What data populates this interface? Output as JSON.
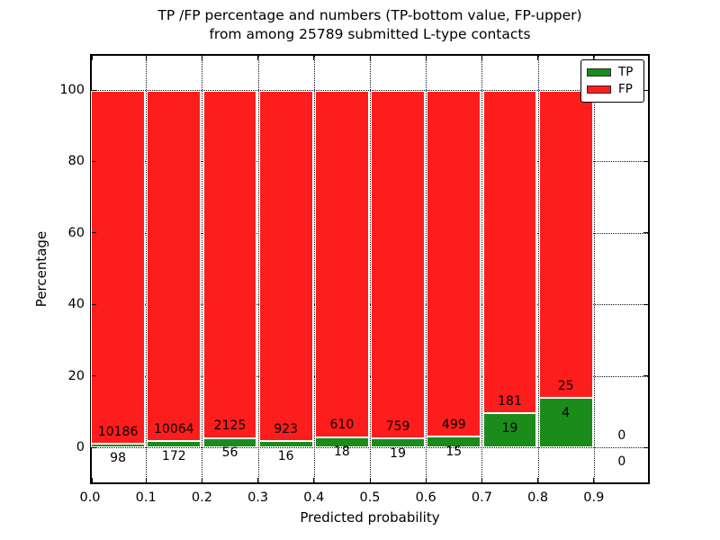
{
  "chart_data": {
    "type": "bar",
    "stacked": true,
    "title_line1": "TP /FP percentage and numbers (TP-bottom value, FP-upper)",
    "title_line2": "from among 25789 submitted L-type contacts",
    "total_submitted": 25789,
    "xlabel": "Predicted probability",
    "ylabel": "Percentage",
    "x_tick_labels": [
      "0.0",
      "0.1",
      "0.2",
      "0.3",
      "0.4",
      "0.5",
      "0.6",
      "0.7",
      "0.8",
      "0.9"
    ],
    "x_tick_values": [
      0.0,
      0.1,
      0.2,
      0.3,
      0.4,
      0.5,
      0.6,
      0.7,
      0.8,
      0.9
    ],
    "y_ticks": [
      0,
      20,
      40,
      60,
      80,
      100
    ],
    "xlim": [
      0.0,
      1.0
    ],
    "ylim": [
      -10.3,
      110.1
    ],
    "grid": "dotted",
    "bin_width": 0.1,
    "bins": [
      {
        "x0": 0.0,
        "tp": 98,
        "fp": 10186
      },
      {
        "x0": 0.1,
        "tp": 172,
        "fp": 10064
      },
      {
        "x0": 0.2,
        "tp": 56,
        "fp": 2125
      },
      {
        "x0": 0.3,
        "tp": 16,
        "fp": 923
      },
      {
        "x0": 0.4,
        "tp": 18,
        "fp": 610
      },
      {
        "x0": 0.5,
        "tp": 19,
        "fp": 759
      },
      {
        "x0": 0.6,
        "tp": 15,
        "fp": 499
      },
      {
        "x0": 0.7,
        "tp": 19,
        "fp": 181
      },
      {
        "x0": 0.8,
        "tp": 4,
        "fp": 25
      },
      {
        "x0": 0.9,
        "tp": 0,
        "fp": 0
      }
    ],
    "series": [
      {
        "name": "TP",
        "color": "#1b8c1b"
      },
      {
        "name": "FP",
        "color": "#fd1d1d"
      }
    ],
    "legend_position": "upper right"
  }
}
